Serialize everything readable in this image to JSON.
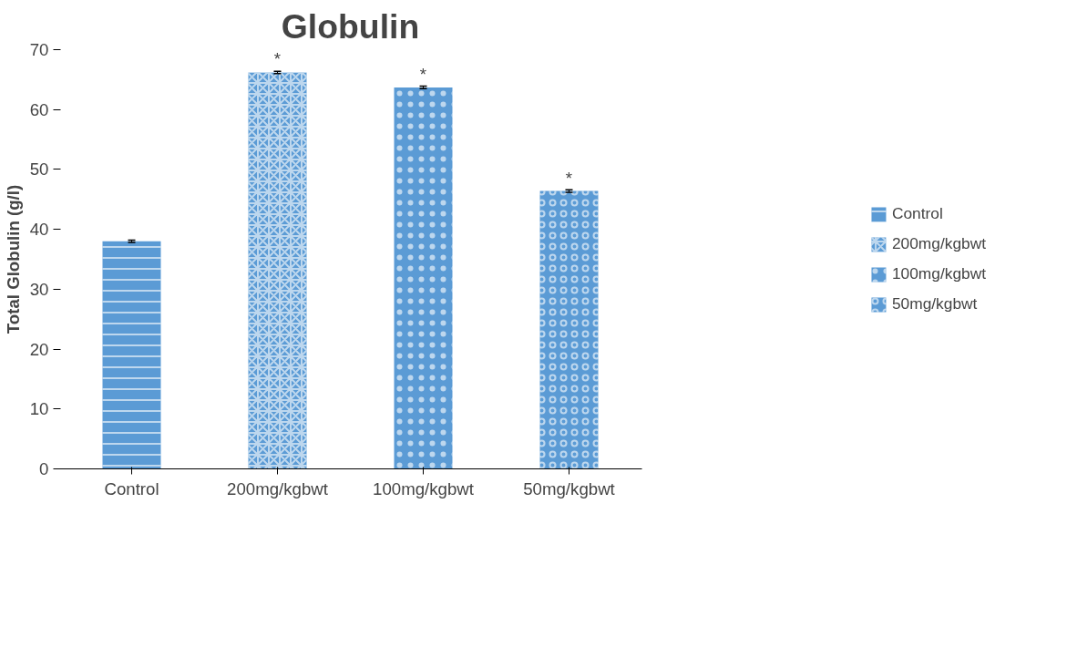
{
  "chart_data": {
    "type": "bar",
    "title": "Globulin",
    "ylabel": "Total Globulin (g/l)",
    "categories": [
      "Control",
      "200mg/kgbwt",
      "100mg/kgbwt",
      "50mg/kgbwt"
    ],
    "series": [
      {
        "name": "Control",
        "color": "#5b9bd5",
        "values": [
          38.0,
          null,
          null,
          null
        ],
        "errors": [
          0.2,
          null,
          null,
          null
        ]
      },
      {
        "name": "200mg/kgbwt",
        "color": "#5b9bd5",
        "values": [
          null,
          66.2,
          null,
          null
        ],
        "errors": [
          null,
          0.2,
          null,
          null
        ]
      },
      {
        "name": "100mg/kgbwt",
        "color": "#5b9bd5",
        "values": [
          null,
          null,
          63.7,
          null
        ],
        "errors": [
          null,
          null,
          0.2,
          null
        ]
      },
      {
        "name": "50mg/kgbwt",
        "color": "#5b9bd5",
        "values": [
          null,
          null,
          null,
          46.4
        ],
        "errors": [
          null,
          null,
          null,
          0.2
        ]
      }
    ],
    "annotations": [
      {
        "text": "*",
        "x": "200mg/kgbwt",
        "y": 66.2
      },
      {
        "text": "*",
        "x": "100mg/kgbwt",
        "y": 63.7
      },
      {
        "text": "*",
        "x": "50mg/kgbwt",
        "y": 46.4
      }
    ],
    "ylim": [
      0,
      70
    ],
    "yticks": [
      0,
      10,
      20,
      30,
      40,
      50,
      60,
      70
    ],
    "grid": false,
    "legend": "right"
  }
}
